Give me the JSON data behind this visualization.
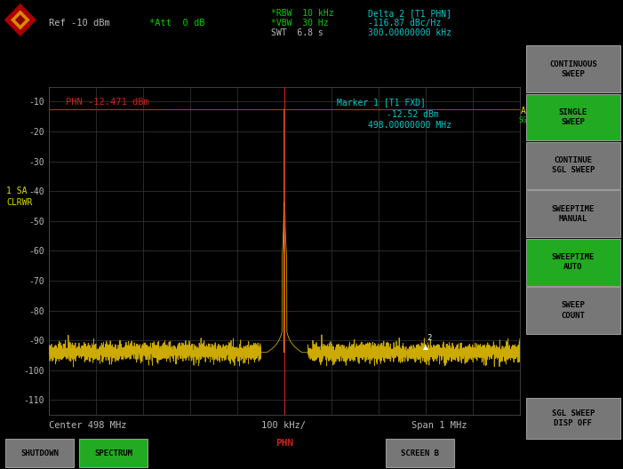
{
  "bg_color": "#000000",
  "plot_bg": "#000000",
  "grid_color": "#3a3a3a",
  "trace_color": "#ccaa00",
  "marker_line_color": "#cc2222",
  "phn_line_color": "#cc2222",
  "top_text_green": "#00cc00",
  "delta_text_color": "#00cccc",
  "ref_text_color": "#bbbbbb",
  "phn_label_color": "#cc2222",
  "ytick_color": "#bbbbbb",
  "xtick_color": "#bbbbbb",
  "yellow_text": "#dddd00",
  "ylim": [
    -115,
    -5
  ],
  "xlim": [
    -0.5,
    0.5
  ],
  "yticks": [
    -10,
    -20,
    -30,
    -40,
    -50,
    -60,
    -70,
    -80,
    -90,
    -100,
    -110
  ],
  "xtick_vals": [
    -0.5,
    -0.4,
    -0.3,
    -0.2,
    -0.1,
    0.0,
    0.1,
    0.2,
    0.3,
    0.4,
    0.5
  ],
  "carrier_peak": -12.471,
  "noise_floor": -92,
  "ref_label": "Ref -10 dBm",
  "att_label": "*Att  0 dB",
  "rbw_label": "*RBW  10 kHz",
  "vbw_label": "*VBW  30 Hz",
  "swt_label": "SWT  6.8 s",
  "delta_label": "Delta 2 [T1 PHN]",
  "delta_val": "-116.87 dBc/Hz",
  "delta_freq": "300.00000000 kHz",
  "phn_label": "PHN -12.471 dBm",
  "marker1_label": "Marker 1 [T1 FXD]",
  "marker1_val": "-12.52 dBm",
  "marker1_freq": "498.00000000 MHz",
  "footer_center": "Center 498 MHz",
  "footer_mid": "100 kHz/",
  "footer_span": "Span 1 MHz",
  "btn_green_color": "#22aa22",
  "btn_gray_color": "#777777",
  "btn_text_color": "#000000",
  "buttons": [
    {
      "label": "CONTINUOUS\nSWEEP",
      "green": false
    },
    {
      "label": "SINGLE\nSWEEP",
      "green": true
    },
    {
      "label": "CONTINUE\nSGL SWEEP",
      "green": false
    },
    {
      "label": "SWEEPTIME\nMANUAL",
      "green": false
    },
    {
      "label": "SWEEPTIME\nAUTO",
      "green": true
    },
    {
      "label": "SWEEP\nCOUNT",
      "green": false
    }
  ],
  "btn_bottom": {
    "label": "SGL SWEEP\nDISP OFF",
    "green": false
  },
  "shutdown_label": "SHUTDOWN",
  "spectrum_label": "SPECTRUM",
  "screen_b_label": "SCREEN B"
}
